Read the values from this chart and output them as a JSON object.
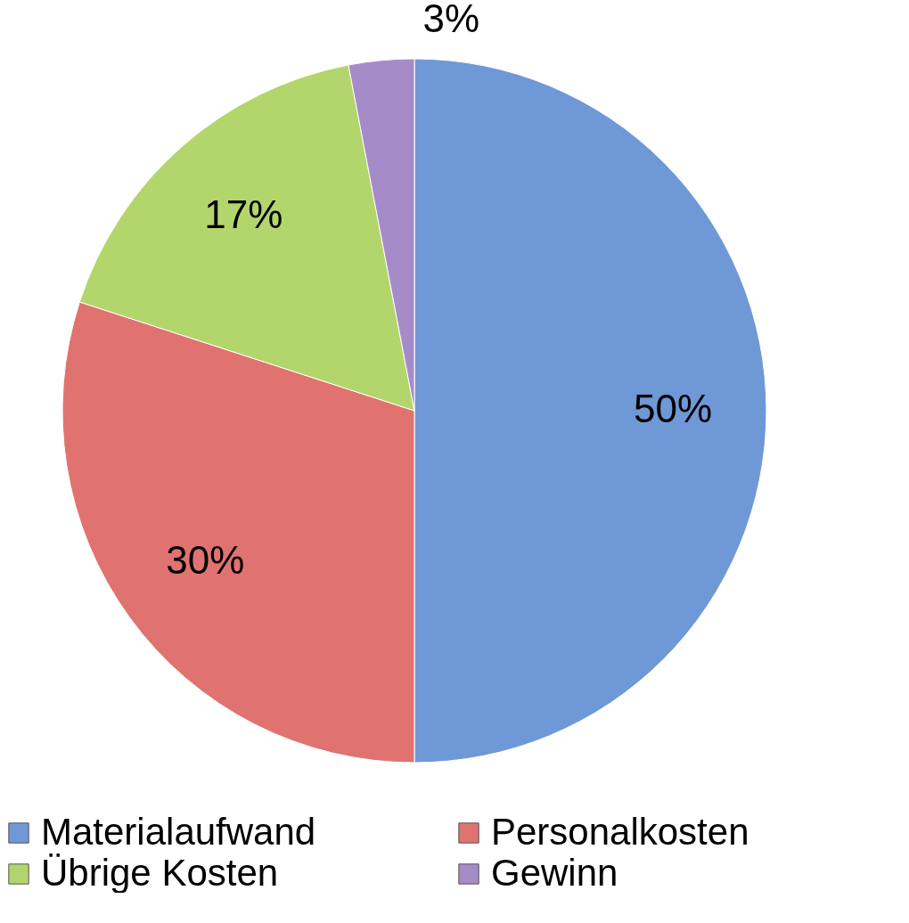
{
  "chart_data": {
    "type": "pie",
    "categories": [
      "Materialaufwand",
      "Personalkosten",
      "Übrige Kosten",
      "Gewinn"
    ],
    "values": [
      50,
      30,
      17,
      3
    ],
    "colors": [
      "#6f98d6",
      "#e07370",
      "#b3d66c",
      "#a68bc9"
    ],
    "value_labels": [
      "50%",
      "30%",
      "17%",
      "3%"
    ],
    "legend": "bottom"
  }
}
